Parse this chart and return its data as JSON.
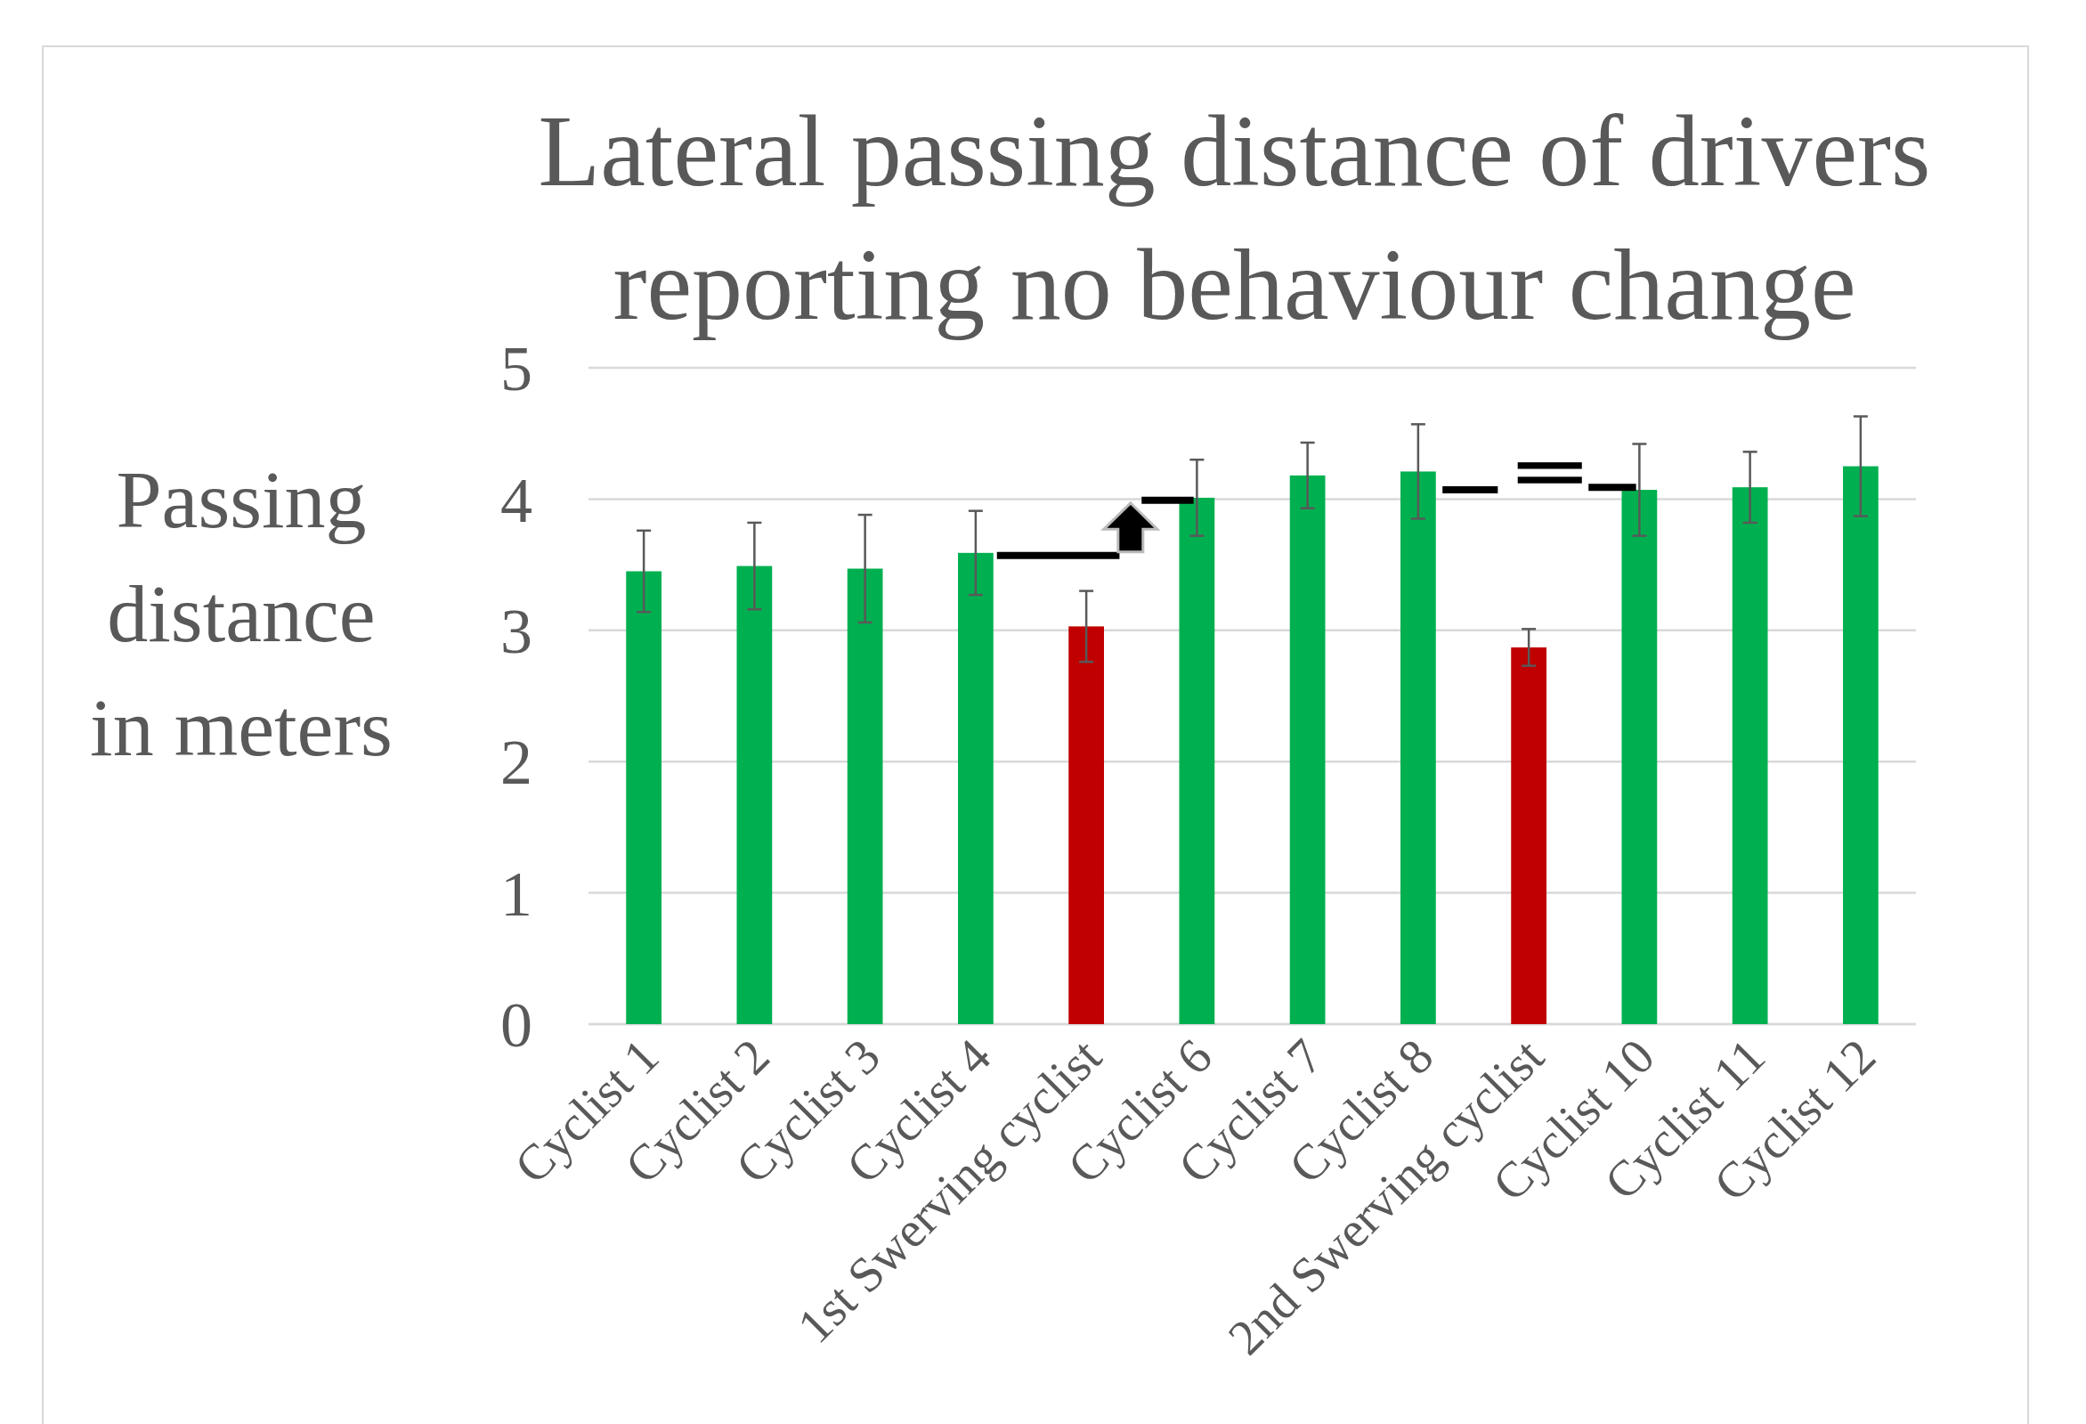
{
  "chart_data": {
    "type": "bar",
    "title": "Lateral passing distance of drivers reporting no behaviour change",
    "ylabel": "Passing distance in meters",
    "categories": [
      "Cyclist 1",
      "Cyclist 2",
      "Cyclist 3",
      "Cyclist 4",
      "1st Swerving cyclist",
      "Cyclist 6",
      "Cyclist 7",
      "Cyclist 8",
      "2nd Swerving cyclist",
      "Cyclist 10",
      "Cyclist 11",
      "Cyclist 12"
    ],
    "values": [
      3.45,
      3.49,
      3.47,
      3.59,
      3.03,
      4.01,
      4.18,
      4.21,
      2.87,
      4.07,
      4.09,
      4.25
    ],
    "errors": [
      0.31,
      0.33,
      0.41,
      0.32,
      0.27,
      0.29,
      0.25,
      0.36,
      0.14,
      0.35,
      0.27,
      0.38
    ],
    "colors": [
      "#00b050",
      "#00b050",
      "#00b050",
      "#00b050",
      "#c00000",
      "#00b050",
      "#00b050",
      "#00b050",
      "#c00000",
      "#00b050",
      "#00b050",
      "#00b050"
    ],
    "ylim": [
      0,
      5
    ],
    "yticks": [
      0,
      1,
      2,
      3,
      4,
      5
    ],
    "grid": "y"
  }
}
